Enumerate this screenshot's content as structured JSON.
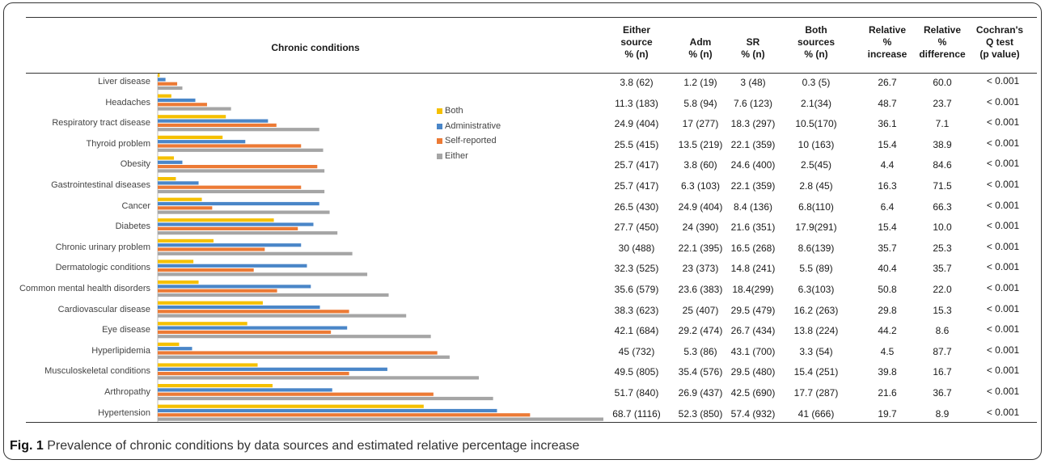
{
  "chart_data": {
    "type": "bar",
    "orientation": "horizontal",
    "title": "",
    "xlabel": "",
    "ylabel": "",
    "categories": [
      "Liver disease",
      "Headaches",
      "Respiratory tract disease",
      "Thyroid problem",
      "Obesity",
      "Gastrointestinal diseases",
      "Cancer",
      "Diabetes",
      "Chronic urinary problem",
      "Dermatologic conditions",
      "Common mental health disorders",
      "Cardiovascular disease",
      "Eye disease",
      "Hyperlipidemia",
      "Musculoskeletal conditions",
      "Arthropathy",
      "Hypertension"
    ],
    "series": [
      {
        "name": "Both",
        "color": "#f5c000",
        "values": [
          0.3,
          2.1,
          10.5,
          10,
          2.5,
          2.8,
          6.8,
          17.9,
          8.6,
          5.5,
          6.3,
          16.2,
          13.8,
          3.3,
          15.4,
          17.7,
          41
        ]
      },
      {
        "name": "Administrative",
        "color": "#4a86c8",
        "values": [
          1.2,
          5.8,
          17,
          13.5,
          3.8,
          6.3,
          24.9,
          24,
          22.1,
          23,
          23.6,
          25,
          29.2,
          5.3,
          35.4,
          26.9,
          52.3
        ]
      },
      {
        "name": "Self-reported",
        "color": "#ec7a35",
        "values": [
          3,
          7.6,
          18.3,
          22.1,
          24.6,
          22.1,
          8.4,
          21.6,
          16.5,
          14.8,
          18.4,
          29.5,
          26.7,
          43.1,
          29.5,
          42.5,
          57.4
        ]
      },
      {
        "name": "Either",
        "color": "#a5a5a5",
        "values": [
          3.8,
          11.3,
          24.9,
          25.5,
          25.7,
          25.7,
          26.5,
          27.7,
          30,
          32.3,
          35.6,
          38.3,
          42.1,
          45,
          49.5,
          51.7,
          68.7
        ]
      }
    ],
    "legend_position": "right"
  },
  "table": {
    "headers": [
      "Chronic conditions",
      "Either\nsource\n% (n)",
      "Adm\n% (n)",
      "SR\n% (n)",
      "Both\nsources\n% (n)",
      "Relative\n%\nincrease",
      "Relative\n%\ndifference",
      "Cochran's\nQ test\n(p value)"
    ],
    "rows": [
      [
        "3.8 (62)",
        "1.2 (19)",
        "3 (48)",
        "0.3 (5)",
        "26.7",
        "60.0",
        "< 0.001"
      ],
      [
        "11.3 (183)",
        "5.8 (94)",
        "7.6 (123)",
        "2.1(34)",
        "48.7",
        "23.7",
        "< 0.001"
      ],
      [
        "24.9 (404)",
        "17 (277)",
        "18.3 (297)",
        "10.5(170)",
        "36.1",
        "7.1",
        "< 0.001"
      ],
      [
        "25.5 (415)",
        "13.5 (219)",
        "22.1 (359)",
        "10 (163)",
        "15.4",
        "38.9",
        "< 0.001"
      ],
      [
        "25.7 (417)",
        "3.8 (60)",
        "24.6 (400)",
        "2.5(45)",
        "4.4",
        "84.6",
        "< 0.001"
      ],
      [
        "25.7 (417)",
        "6.3 (103)",
        "22.1 (359)",
        "2.8 (45)",
        "16.3",
        "71.5",
        "< 0.001"
      ],
      [
        "26.5 (430)",
        "24.9 (404)",
        "8.4 (136)",
        "6.8(110)",
        "6.4",
        "66.3",
        "< 0.001"
      ],
      [
        "27.7 (450)",
        "24 (390)",
        "21.6 (351)",
        "17.9(291)",
        "15.4",
        "10.0",
        "< 0.001"
      ],
      [
        "30 (488)",
        "22.1 (395)",
        "16.5 (268)",
        "8.6(139)",
        "35.7",
        "25.3",
        "< 0.001"
      ],
      [
        "32.3 (525)",
        "23 (373)",
        "14.8 (241)",
        "5.5 (89)",
        "40.4",
        "35.7",
        "< 0.001"
      ],
      [
        "35.6 (579)",
        "23.6 (383)",
        "18.4(299)",
        "6.3(103)",
        "50.8",
        "22.0",
        "< 0.001"
      ],
      [
        "38.3 (623)",
        "25 (407)",
        "29.5 (479)",
        "16.2 (263)",
        "29.8",
        "15.3",
        "< 0.001"
      ],
      [
        "42.1 (684)",
        "29.2 (474)",
        "26.7 (434)",
        "13.8 (224)",
        "44.2",
        "8.6",
        "< 0.001"
      ],
      [
        "45 (732)",
        "5.3 (86)",
        "43.1 (700)",
        "3.3 (54)",
        "4.5",
        "87.7",
        "< 0.001"
      ],
      [
        "49.5 (805)",
        "35.4 (576)",
        "29.5 (480)",
        "15.4 (251)",
        "39.8",
        "16.7",
        "< 0.001"
      ],
      [
        "51.7 (840)",
        "26.9 (437)",
        "42.5 (690)",
        "17.7 (287)",
        "21.6",
        "36.7",
        "< 0.001"
      ],
      [
        "68.7 (1116)",
        "52.3 (850)",
        "57.4 (932)",
        "41 (666)",
        "19.7",
        "8.9",
        "< 0.001"
      ]
    ]
  },
  "caption": {
    "label": "Fig. 1",
    "text": " Prevalence of chronic conditions by data sources and estimated relative percentage increase"
  }
}
